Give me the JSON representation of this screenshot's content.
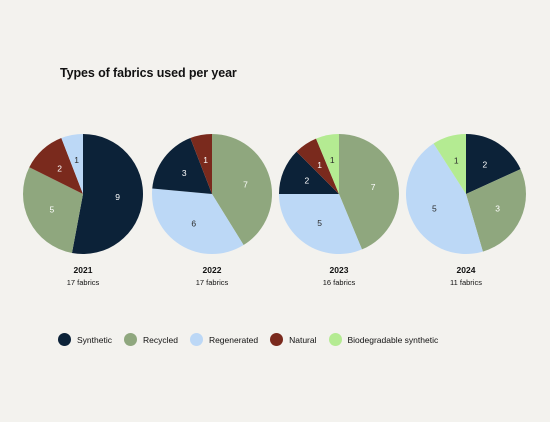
{
  "chart_data": {
    "type": "pie",
    "title": "Types of fabrics used per year",
    "series": [
      {
        "name": "Synthetic",
        "color": "#0c2238",
        "text_color": "#ffffff"
      },
      {
        "name": "Recycled",
        "color": "#8fa77e",
        "text_color": "#ffffff"
      },
      {
        "name": "Regenerated",
        "color": "#bcd8f6",
        "text_color": "#2a2a2a"
      },
      {
        "name": "Natural",
        "color": "#7a2a1d",
        "text_color": "#ffffff"
      },
      {
        "name": "Biodegradable synthetic",
        "color": "#b4eb92",
        "text_color": "#2a2a2a"
      }
    ],
    "pies": [
      {
        "year": "2021",
        "total_label": "17 fabrics",
        "slices": [
          {
            "category": "Synthetic",
            "value": 9
          },
          {
            "category": "Recycled",
            "value": 5
          },
          {
            "category": "Natural",
            "value": 2
          },
          {
            "category": "Regenerated",
            "value": 1
          }
        ]
      },
      {
        "year": "2022",
        "total_label": "17 fabrics",
        "slices": [
          {
            "category": "Recycled",
            "value": 7
          },
          {
            "category": "Regenerated",
            "value": 6
          },
          {
            "category": "Synthetic",
            "value": 3
          },
          {
            "category": "Natural",
            "value": 1
          }
        ]
      },
      {
        "year": "2023",
        "total_label": "16 fabrics",
        "slices": [
          {
            "category": "Recycled",
            "value": 7
          },
          {
            "category": "Regenerated",
            "value": 5
          },
          {
            "category": "Synthetic",
            "value": 2
          },
          {
            "category": "Natural",
            "value": 1
          },
          {
            "category": "Biodegradable synthetic",
            "value": 1
          }
        ]
      },
      {
        "year": "2024",
        "total_label": "11 fabrics",
        "slices": [
          {
            "category": "Synthetic",
            "value": 2
          },
          {
            "category": "Recycled",
            "value": 3
          },
          {
            "category": "Regenerated",
            "value": 5
          },
          {
            "category": "Biodegradable synthetic",
            "value": 1
          }
        ]
      }
    ],
    "legend_placement": "bottom"
  }
}
